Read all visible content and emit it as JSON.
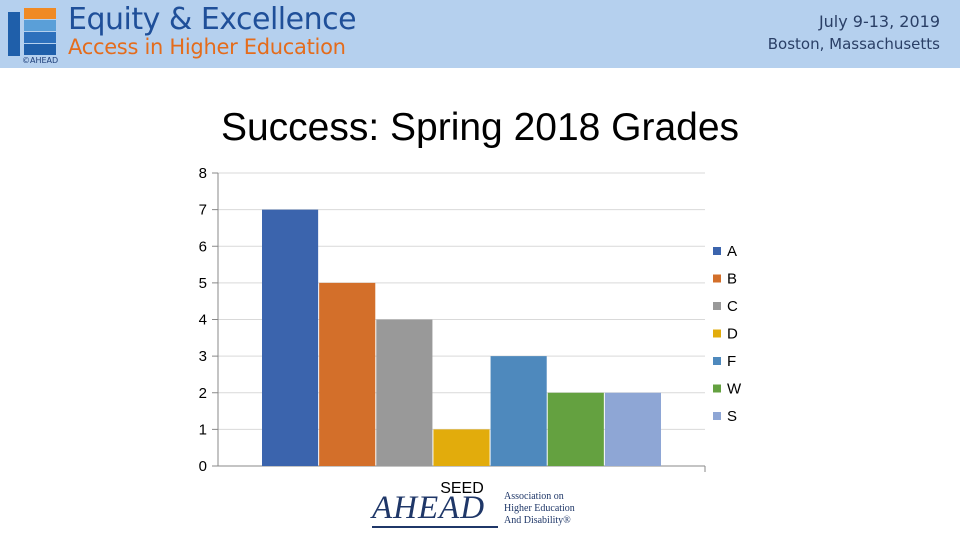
{
  "banner": {
    "title": "Equity & Excellence",
    "subtitle": "Access in Higher Education",
    "date": "July 9-13, 2019",
    "location": "Boston, Massachusetts",
    "logo_caption": "©AHEAD",
    "colors": {
      "background": "#b5d0ee",
      "title": "#1f4f99",
      "subtitle": "#e46c1c"
    }
  },
  "slide": {
    "title": "Success: Spring 2018 Grades"
  },
  "footer": {
    "logo_text": "AHEAD",
    "org_lines": "Association on\nHigher Education\nAnd Disability®"
  },
  "chart_data": {
    "type": "bar",
    "title": "Success: Spring 2018 Grades",
    "categories": [
      "SEED"
    ],
    "series": [
      {
        "name": "A",
        "values": [
          7
        ],
        "color": "#3b64ad"
      },
      {
        "name": "B",
        "values": [
          5
        ],
        "color": "#d36f2a"
      },
      {
        "name": "C",
        "values": [
          4
        ],
        "color": "#999999"
      },
      {
        "name": "D",
        "values": [
          1
        ],
        "color": "#e2ac0c"
      },
      {
        "name": "F",
        "values": [
          3
        ],
        "color": "#4e89bd"
      },
      {
        "name": "W",
        "values": [
          2
        ],
        "color": "#64a140"
      },
      {
        "name": "S",
        "values": [
          2
        ],
        "color": "#8ea6d5"
      }
    ],
    "xlabel": "",
    "ylabel": "",
    "ylim": [
      0,
      8
    ],
    "yticks": [
      0,
      1,
      2,
      3,
      4,
      5,
      6,
      7,
      8
    ],
    "grid": true,
    "legend": "right"
  }
}
